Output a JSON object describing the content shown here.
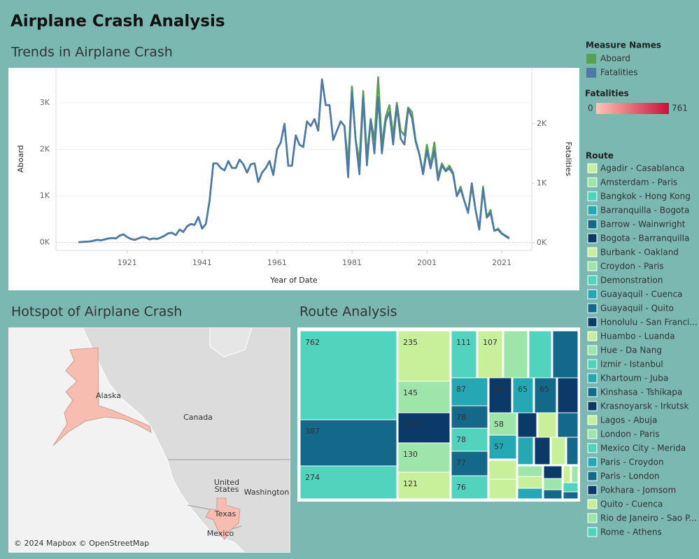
{
  "title": "Airplane Crash Analysis",
  "chart_data": [
    {
      "type": "line",
      "title": "Trends in Airplane Crash",
      "x_label": "Year of Date",
      "y_label": "Aboard",
      "y2_label": "Fatalities",
      "legend_title": "Measure Names",
      "x": [
        1908,
        1909,
        1910,
        1911,
        1912,
        1913,
        1914,
        1915,
        1916,
        1917,
        1918,
        1919,
        1920,
        1921,
        1922,
        1923,
        1924,
        1925,
        1926,
        1927,
        1928,
        1929,
        1930,
        1931,
        1932,
        1933,
        1934,
        1935,
        1936,
        1937,
        1938,
        1939,
        1940,
        1941,
        1942,
        1943,
        1944,
        1945,
        1946,
        1947,
        1948,
        1949,
        1950,
        1951,
        1952,
        1953,
        1954,
        1955,
        1956,
        1957,
        1958,
        1959,
        1960,
        1961,
        1962,
        1963,
        1964,
        1965,
        1966,
        1967,
        1968,
        1969,
        1970,
        1971,
        1972,
        1973,
        1974,
        1975,
        1976,
        1977,
        1978,
        1979,
        1980,
        1981,
        1982,
        1983,
        1984,
        1985,
        1986,
        1987,
        1988,
        1989,
        1990,
        1991,
        1992,
        1993,
        1994,
        1995,
        1996,
        1997,
        1998,
        1999,
        2000,
        2001,
        2002,
        2003,
        2004,
        2005,
        2006,
        2007,
        2008,
        2009,
        2010,
        2011,
        2012,
        2013,
        2014,
        2015,
        2016,
        2017,
        2018,
        2019,
        2020,
        2021,
        2022,
        2023
      ],
      "xlim": [
        1902,
        2029
      ],
      "xticks": [
        1921,
        1941,
        1961,
        1981,
        2001,
        2021
      ],
      "ylim": [
        -170,
        3750
      ],
      "yticks": [
        {
          "value": 0,
          "label": "0K"
        },
        {
          "value": 1000,
          "label": "1K"
        },
        {
          "value": 2000,
          "label": "2K"
        },
        {
          "value": 3000,
          "label": "3K"
        }
      ],
      "y2lim": [
        -130,
        2940
      ],
      "y2ticks": [
        {
          "value": 0,
          "label": "0K"
        },
        {
          "value": 1000,
          "label": "1K"
        },
        {
          "value": 2000,
          "label": "2K"
        }
      ],
      "grid": true,
      "series": [
        {
          "name": "Aboard",
          "color": "#59a14f",
          "values": [
            10,
            15,
            20,
            25,
            40,
            60,
            50,
            70,
            90,
            100,
            90,
            150,
            180,
            120,
            80,
            60,
            90,
            120,
            110,
            70,
            90,
            80,
            110,
            150,
            200,
            210,
            160,
            280,
            230,
            350,
            400,
            380,
            550,
            300,
            400,
            900,
            1700,
            1700,
            1600,
            1550,
            1750,
            1600,
            1600,
            1780,
            1680,
            1500,
            1680,
            1700,
            1300,
            1500,
            1600,
            1750,
            1450,
            2000,
            2150,
            2550,
            1650,
            1650,
            2300,
            2100,
            2050,
            2600,
            2500,
            2650,
            2400,
            3500,
            2950,
            2950,
            2200,
            2400,
            2600,
            2500,
            1700,
            3350,
            2200,
            1750,
            3250,
            1850,
            2650,
            2200,
            3550,
            2100,
            2700,
            2950,
            2300,
            3000,
            2400,
            2300,
            2900,
            2800,
            2200,
            1900,
            1500,
            2100,
            1650,
            2150,
            1400,
            1700,
            1550,
            1650,
            1500,
            1000,
            1200,
            900,
            650,
            1200,
            700,
            300,
            1200,
            550,
            700,
            250,
            300,
            200,
            150,
            100
          ]
        },
        {
          "name": "Fatalities",
          "color": "#4e79a7",
          "axis": "y2",
          "values": [
            8,
            12,
            16,
            20,
            31,
            47,
            39,
            55,
            71,
            78,
            71,
            118,
            141,
            94,
            63,
            47,
            71,
            94,
            86,
            55,
            71,
            63,
            86,
            118,
            157,
            165,
            126,
            220,
            181,
            275,
            314,
            298,
            432,
            236,
            314,
            706,
            1334,
            1334,
            1256,
            1217,
            1374,
            1256,
            1256,
            1397,
            1319,
            1178,
            1319,
            1334,
            1020,
            1178,
            1256,
            1374,
            1138,
            1570,
            1688,
            2002,
            1295,
            1295,
            1806,
            1649,
            1609,
            2041,
            1963,
            2080,
            1884,
            2748,
            2316,
            2316,
            1727,
            1884,
            2041,
            1963,
            1100,
            2550,
            1727,
            1150,
            2450,
            1300,
            2080,
            1500,
            2450,
            1500,
            2050,
            2200,
            1650,
            2300,
            1750,
            1650,
            2250,
            2100,
            1700,
            1480,
            1150,
            1550,
            1250,
            1550,
            1050,
            1300,
            1200,
            1250,
            1150,
            780,
            900,
            700,
            500,
            1000,
            550,
            220,
            900,
            420,
            500,
            200,
            220,
            150,
            110,
            70
          ]
        }
      ]
    },
    {
      "type": "map",
      "title": "Hotspot of Airplane Crash",
      "regions": [
        "Alaska",
        "Texas"
      ],
      "region_color": "#f7bdb0",
      "labels": [
        "Canada",
        "United States",
        "Washington",
        "Mexico"
      ],
      "attribution": "© 2024 Mapbox © OpenStreetMap"
    },
    {
      "type": "treemap",
      "title": "Route Analysis",
      "values": [
        762,
        387,
        274,
        235,
        145,
        139,
        130,
        121,
        111,
        107,
        99,
        95,
        100,
        87,
        68,
        65,
        65,
        60,
        78,
        78,
        77,
        76,
        58,
        40,
        40,
        40,
        57,
        35,
        35,
        30,
        28,
        46,
        46,
        20,
        22,
        22,
        20,
        18,
        14,
        10,
        10,
        8,
        8
      ],
      "value_labels": [
        "762",
        "387",
        "274",
        "235",
        "145",
        "139",
        "130",
        "121",
        "111",
        "107",
        null,
        null,
        null,
        "87",
        "68",
        "65",
        "65",
        null,
        "78",
        "78",
        "77",
        "76",
        "58",
        null,
        null,
        null,
        "57",
        null,
        null,
        null,
        null,
        null,
        null,
        null,
        null,
        null,
        null,
        null,
        null,
        null,
        null,
        null,
        null
      ],
      "colors": [
        "#52d3be",
        "#14688a",
        "#52d3be",
        "#c8f09a",
        "#9de5a8",
        "#0b3a68",
        "#9de5a8",
        "#c8f09a",
        "#52d3be",
        "#c8f09a",
        "#9de5a8",
        "#52d3be",
        "#14688a",
        "#25a8b3",
        "#0b3a68",
        "#25a8b3",
        "#14688a",
        "#0b3a68",
        "#14688a",
        "#52d3be",
        "#14688a",
        "#52d3be",
        "#9de5a8",
        "#0b3a68",
        "#c8f09a",
        "#14688a",
        "#25a8b3",
        "#25a8b3",
        "#0b3a68",
        "#c8f09a",
        "#14688a",
        "#c8f09a",
        "#c8f09a",
        "#9de5a8",
        "#c8f09a",
        "#25a8b3",
        "#0b3a68",
        "#9de5a8",
        "#14688a",
        "#c8f09a",
        "#9de5a8",
        "#52d3be",
        "#14688a"
      ]
    }
  ],
  "color_legend": {
    "title": "Fatalities",
    "min": 0,
    "max": 761,
    "colors": [
      "#fcc5b4",
      "#c8103e"
    ]
  },
  "route_legend": {
    "title": "Route",
    "names": [
      "Agadir - Casablanca",
      "Amsterdam - Paris",
      "Bangkok - Hong Kong",
      "Barranquilla - Bogota",
      "Barrow - Wainwright",
      "Bogota - Barranquilla",
      "Burbank - Oakland",
      "Croydon - Paris",
      "Demonstration",
      "Guayaquil - Cuenca",
      "Guayaquil - Quito",
      "Honolulu - San Franci...",
      "Huambo - Luanda",
      "Hue - Da Nang",
      "Izmir - Istanbul",
      "Khartoum - Juba",
      "Kinshasa - Tshikapa",
      "Krasnoyarsk - Irkutsk",
      "Lagos - Abuja",
      "London - Paris",
      "Mexico City - Merida",
      "Paris - Croydon",
      "Paris - London",
      "Pokhara - Jomsom",
      "Quito - Cuenca",
      "Rio de Janeiro - Sao P...",
      "Rome - Athens"
    ],
    "colors": [
      "#c8f09a",
      "#9de5a8",
      "#52d3be",
      "#25a8b3",
      "#14688a",
      "#0b3a68",
      "#c8f09a",
      "#9de5a8",
      "#52d3be",
      "#25a8b3",
      "#14688a",
      "#0b3a68",
      "#c8f09a",
      "#9de5a8",
      "#52d3be",
      "#25a8b3",
      "#14688a",
      "#0b3a68",
      "#c8f09a",
      "#9de5a8",
      "#52d3be",
      "#25a8b3",
      "#14688a",
      "#0b3a68",
      "#c8f09a",
      "#9de5a8",
      "#52d3be"
    ]
  }
}
